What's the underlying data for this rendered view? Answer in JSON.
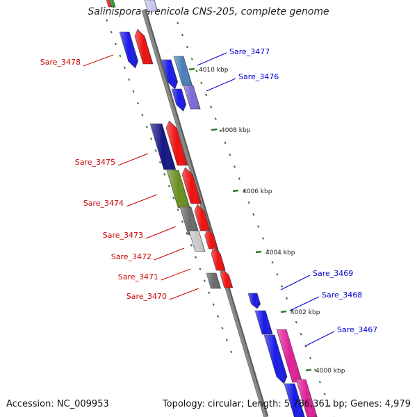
{
  "title": "Salinispora arenicola CNS-205, complete genome",
  "footer": {
    "accession": "Accession: NC_009953",
    "topology": "Topology: circular; Length: 5,786,361 bp; Genes: 4,979"
  },
  "colors": {
    "backbone": "#8a8a8a",
    "forward_label": "#0000cc",
    "reverse_label": "#cc0000",
    "tick": "#2a7a2a"
  },
  "ruler_labels": [
    "4010 kbp",
    "4008 kbp",
    "4006 kbp",
    "4004 kbp",
    "4002 kbp",
    "4000 kbp"
  ],
  "genes": [
    {
      "name": "Sare_3478",
      "label_color": "#cc0000"
    },
    {
      "name": "Sare_3477",
      "label_color": "#0000cc"
    },
    {
      "name": "Sare_3476",
      "label_color": "#0000cc"
    },
    {
      "name": "Sare_3475",
      "label_color": "#cc0000"
    },
    {
      "name": "Sare_3474",
      "label_color": "#cc0000"
    },
    {
      "name": "Sare_3473",
      "label_color": "#cc0000"
    },
    {
      "name": "Sare_3472",
      "label_color": "#cc0000"
    },
    {
      "name": "Sare_3471",
      "label_color": "#cc0000"
    },
    {
      "name": "Sare_3470",
      "label_color": "#cc0000"
    },
    {
      "name": "Sare_3469",
      "label_color": "#0000cc"
    },
    {
      "name": "Sare_3468",
      "label_color": "#0000cc"
    },
    {
      "name": "Sare_3467",
      "label_color": "#0000cc"
    }
  ]
}
